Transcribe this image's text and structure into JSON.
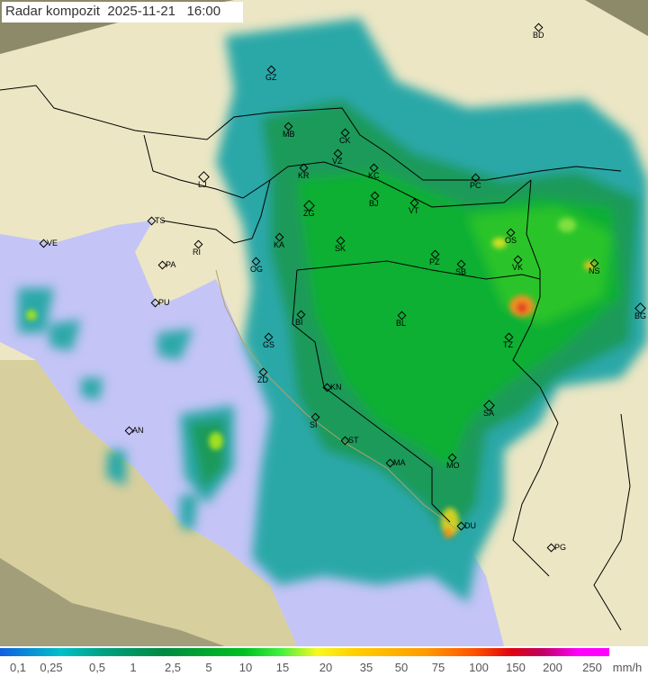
{
  "title": {
    "label": "Radar kompozit",
    "date": "2025-11-21",
    "time": "16:00"
  },
  "colors": {
    "sea": "#c4c4f6",
    "land": "#ece6c4",
    "outside": "#8c8a68",
    "border": "#000000"
  },
  "cities": [
    "GZ",
    "BD",
    "MB",
    "CK",
    "VZ",
    "KR",
    "KC",
    "PC",
    "LJ",
    "ZG",
    "BJ",
    "VT",
    "TS",
    "VE",
    "RI",
    "KA",
    "SK",
    "PA",
    "OG",
    "PZ",
    "SB",
    "OS",
    "VK",
    "NS",
    "BG",
    "PU",
    "BI",
    "BL",
    "GS",
    "TZ",
    "ZD",
    "KN",
    "SA",
    "SI",
    "AN",
    "ST",
    "MA",
    "MO",
    "DU",
    "PG"
  ],
  "legend": {
    "ticks": [
      "0,1",
      "0,25",
      "0,5",
      "1",
      "2,5",
      "5",
      "10",
      "15",
      "20",
      "35",
      "50",
      "75",
      "100",
      "150",
      "200",
      "250"
    ],
    "unit": "mm/h"
  }
}
